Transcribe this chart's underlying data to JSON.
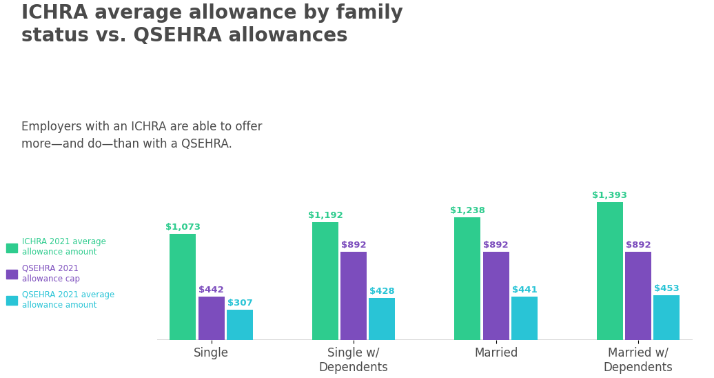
{
  "title": "ICHRA average allowance by family\nstatus vs. QSEHRA allowances",
  "subtitle": "Employers with an ICHRA are able to offer\nmore—and do—than with a QSEHRA.",
  "categories": [
    "Single",
    "Single w/\nDependents",
    "Married",
    "Married w/\nDependents"
  ],
  "series": {
    "ichra": [
      1073,
      1192,
      1238,
      1393
    ],
    "qsehra_cap": [
      442,
      892,
      892,
      892
    ],
    "qsehra_avg": [
      307,
      428,
      441,
      453
    ]
  },
  "colors": {
    "ichra": "#2ecc8e",
    "qsehra_cap": "#7c4dbd",
    "qsehra_avg": "#29c4d6"
  },
  "legend_labels": {
    "ichra": "ICHRA 2021 average\nallowance amount",
    "qsehra_cap": "QSEHRA 2021\nallowance cap",
    "qsehra_avg": "QSEHRA 2021 average\nallowance amount"
  },
  "label_colors": {
    "ichra": "#2ecc8e",
    "qsehra_cap": "#7c4dbd",
    "qsehra_avg": "#29c4d6"
  },
  "background_color": "#ffffff",
  "title_color": "#4a4a4a",
  "subtitle_color": "#4a4a4a",
  "axis_color": "#cccccc",
  "bar_width": 0.22,
  "ylim": [
    0,
    1600
  ],
  "value_fontsize": 9.5,
  "legend_fontsize": 8.5,
  "title_fontsize": 20,
  "subtitle_fontsize": 12,
  "xtick_fontsize": 12
}
